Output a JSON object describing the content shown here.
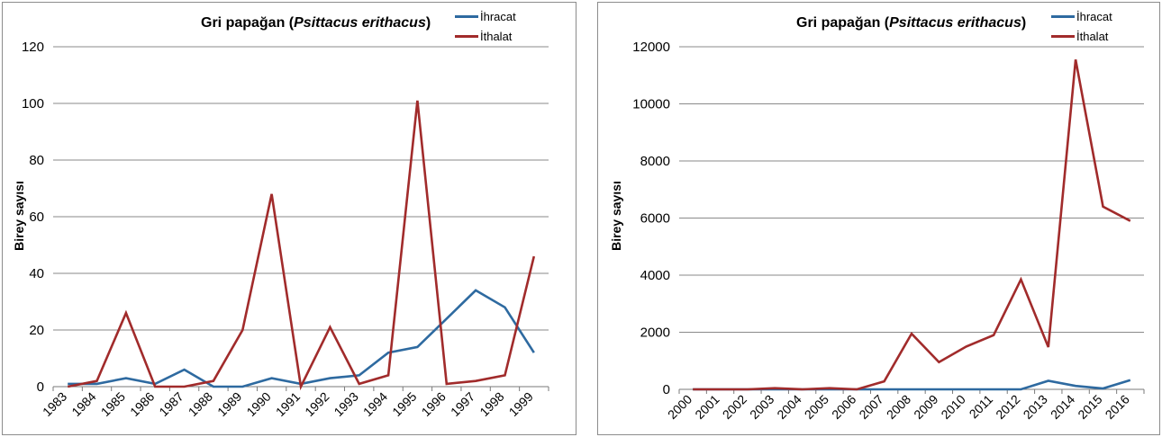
{
  "chart_data": [
    {
      "type": "line",
      "title_prefix": "Gri papağan (",
      "title_species": "Psittacus erithacus",
      "title_suffix": ")",
      "xlabel": "",
      "ylabel": "Birey sayısı",
      "ylim": [
        0,
        120
      ],
      "yticks": [
        0,
        20,
        40,
        60,
        80,
        100,
        120
      ],
      "grid": true,
      "legend_position": "top-right",
      "categories": [
        "1983",
        "1984",
        "1985",
        "1986",
        "1987",
        "1988",
        "1989",
        "1990",
        "1991",
        "1992",
        "1993",
        "1994",
        "1995",
        "1996",
        "1997",
        "1998",
        "1999"
      ],
      "series": [
        {
          "name": "İhracat",
          "color": "#2e6aa0",
          "values": [
            1,
            1,
            3,
            1,
            6,
            0,
            0,
            3,
            1,
            3,
            4,
            12,
            14,
            24,
            34,
            28,
            12
          ]
        },
        {
          "name": "İthalat",
          "color": "#a12b2b",
          "values": [
            0,
            2,
            26,
            0,
            0,
            2,
            20,
            68,
            0,
            21,
            1,
            4,
            101,
            1,
            2,
            4,
            46
          ]
        }
      ]
    },
    {
      "type": "line",
      "title_prefix": "Gri papağan (",
      "title_species": "Psittacus erithacus",
      "title_suffix": ")",
      "xlabel": "",
      "ylabel": "Birey sayısı",
      "ylim": [
        0,
        12000
      ],
      "yticks": [
        0,
        2000,
        4000,
        6000,
        8000,
        10000,
        12000
      ],
      "grid": true,
      "legend_position": "top-right",
      "categories": [
        "2000",
        "2001",
        "2002",
        "2003",
        "2004",
        "2005",
        "2006",
        "2007",
        "2008",
        "2009",
        "2010",
        "2011",
        "2012",
        "2013",
        "2014",
        "2015",
        "2016"
      ],
      "series": [
        {
          "name": "İhracat",
          "color": "#2e6aa0",
          "values": [
            0,
            0,
            0,
            0,
            0,
            0,
            0,
            0,
            0,
            0,
            0,
            0,
            0,
            300,
            120,
            30,
            320
          ]
        },
        {
          "name": "İthalat",
          "color": "#a12b2b",
          "values": [
            0,
            0,
            0,
            40,
            0,
            40,
            0,
            280,
            1950,
            950,
            1500,
            1900,
            3850,
            1480,
            11550,
            6400,
            5900
          ]
        }
      ]
    }
  ]
}
